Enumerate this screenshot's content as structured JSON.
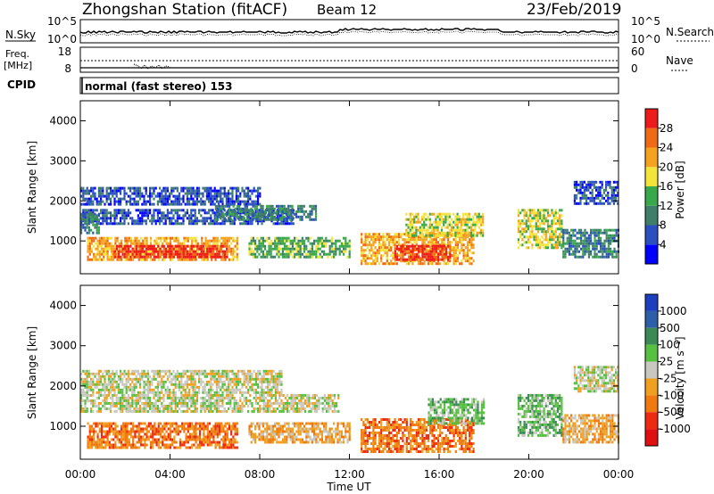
{
  "header": {
    "station": "Zhongshan Station (fitACF)",
    "beam": "Beam 12",
    "date": "23/Feb/2019"
  },
  "noise_panel": {
    "left_label": "N.Sky",
    "left_tick_top": "10^5",
    "left_tick_bottom": "10^0",
    "right_label": "N.Search",
    "right_tick_top": "10^5",
    "right_tick_bottom": "10^0"
  },
  "freq_panel": {
    "left_label_line1": "Freq.",
    "left_label_line2": "[MHz]",
    "left_tick_top": "18",
    "left_tick_bottom": "8",
    "right_label": "Nave",
    "right_tick_top": "60",
    "right_tick_bottom": "0"
  },
  "cpid": {
    "label": "CPID",
    "text": "normal (fast stereo) 153"
  },
  "x_axis": {
    "title": "Time UT",
    "ticks": [
      "00:00",
      "04:00",
      "08:00",
      "12:00",
      "16:00",
      "20:00",
      "00:00"
    ]
  },
  "y_axis": {
    "title": "Slant Range [km]",
    "ticks": [
      "1000",
      "2000",
      "3000",
      "4000"
    ]
  },
  "power_scale": {
    "title": "Power [dB]",
    "labels": [
      "4",
      "8",
      "12",
      "16",
      "20",
      "24",
      "28"
    ],
    "colors": [
      "#0000ff",
      "#2a4fbf",
      "#3f7f6a",
      "#39a84a",
      "#f2e43a",
      "#f4a21f",
      "#ef6a15",
      "#ee1b1b"
    ]
  },
  "velocity_scale": {
    "title": "Velocity [m s⁻¹]",
    "labels": [
      "1000",
      "500",
      "100",
      "25",
      "-25",
      "-100",
      "-500",
      "-1000"
    ],
    "colors": [
      "#1b3fbf",
      "#2d5fa8",
      "#3a8a55",
      "#58c040",
      "#c8c8c0",
      "#f0a020",
      "#f07a10",
      "#ee2a10",
      "#e01010"
    ],
    "ground_scatter_color": "#c8c8c0"
  },
  "chart_data": {
    "type": "heatmap",
    "x_range_hours": [
      0,
      24
    ],
    "y_range_km": [
      180,
      4500
    ],
    "power_colorbar_range_db": [
      0,
      30
    ],
    "velocity_colorbar_range_ms": [
      -1000,
      1000
    ],
    "panels": [
      {
        "name": "Power",
        "bands": [
          {
            "t0": 0.0,
            "t1": 8.0,
            "r0": 1900,
            "r1": 2350,
            "level": 1
          },
          {
            "t0": 0.0,
            "t1": 9.5,
            "r0": 1450,
            "r1": 1800,
            "level": 1
          },
          {
            "t0": 0.0,
            "t1": 0.8,
            "r0": 1200,
            "r1": 1700,
            "level": 2
          },
          {
            "t0": 0.3,
            "t1": 7.0,
            "r0": 500,
            "r1": 1100,
            "level": 5
          },
          {
            "t0": 1.5,
            "t1": 6.5,
            "r0": 600,
            "r1": 900,
            "level": 7
          },
          {
            "t0": 6.0,
            "t1": 10.5,
            "r0": 1500,
            "r1": 1900,
            "level": 2
          },
          {
            "t0": 7.5,
            "t1": 12.0,
            "r0": 600,
            "r1": 1100,
            "level": 3
          },
          {
            "t0": 12.5,
            "t1": 17.5,
            "r0": 400,
            "r1": 1200,
            "level": 5
          },
          {
            "t0": 14.0,
            "t1": 16.5,
            "r0": 500,
            "r1": 900,
            "level": 7
          },
          {
            "t0": 14.5,
            "t1": 18.0,
            "r0": 1100,
            "r1": 1700,
            "level": 4
          },
          {
            "t0": 19.5,
            "t1": 21.5,
            "r0": 800,
            "r1": 1800,
            "level": 4
          },
          {
            "t0": 21.5,
            "t1": 24.0,
            "r0": 600,
            "r1": 1300,
            "level": 2
          },
          {
            "t0": 22.0,
            "t1": 24.0,
            "r0": 1900,
            "r1": 2500,
            "level": 1
          }
        ]
      },
      {
        "name": "Velocity",
        "bands": [
          {
            "t0": 0.0,
            "t1": 9.0,
            "r0": 1850,
            "r1": 2400,
            "level": 4
          },
          {
            "t0": 0.0,
            "t1": 11.5,
            "r0": 1400,
            "r1": 1800,
            "level": 4
          },
          {
            "t0": 0.3,
            "t1": 7.0,
            "r0": 500,
            "r1": 1100,
            "level": 6
          },
          {
            "t0": 7.5,
            "t1": 12.0,
            "r0": 600,
            "r1": 1100,
            "level": 5
          },
          {
            "t0": 12.5,
            "t1": 17.5,
            "r0": 400,
            "r1": 1200,
            "level": 6
          },
          {
            "t0": 15.5,
            "t1": 18.0,
            "r0": 1100,
            "r1": 1700,
            "level": 3
          },
          {
            "t0": 19.5,
            "t1": 21.5,
            "r0": 800,
            "r1": 1800,
            "level": 3
          },
          {
            "t0": 21.5,
            "t1": 24.0,
            "r0": 600,
            "r1": 1300,
            "level": 5
          },
          {
            "t0": 22.0,
            "t1": 24.0,
            "r0": 1900,
            "r1": 2500,
            "level": 4
          }
        ]
      }
    ]
  }
}
